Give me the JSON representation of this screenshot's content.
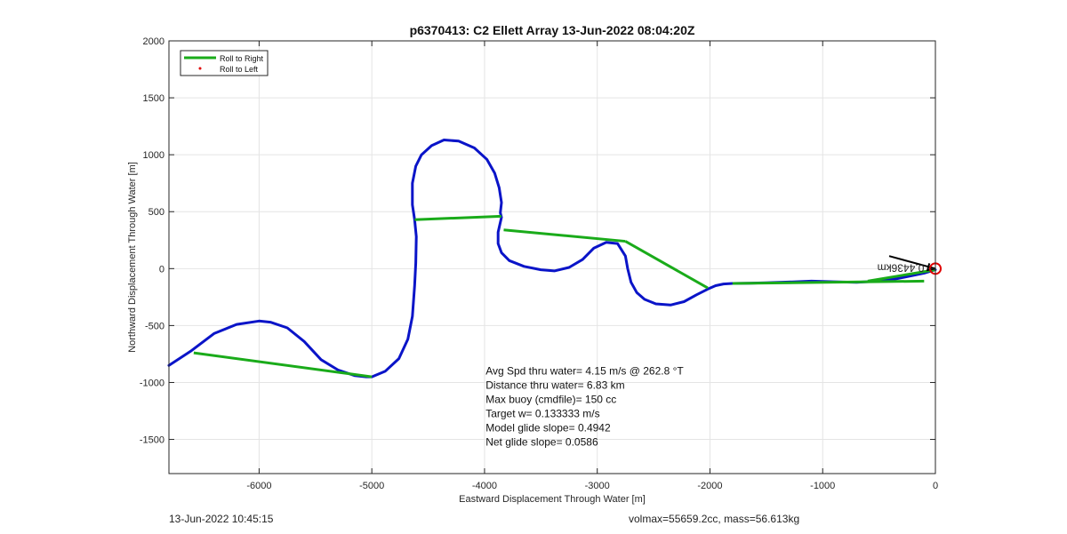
{
  "footer": {
    "timestamp": "13-Jun-2022 10:45:15",
    "volume_mass": "volmax=55659.2cc, mass=56.613kg"
  },
  "chart_data": {
    "type": "line",
    "title": "p6370413: C2 Ellett Array 13-Jun-2022 08:04:20Z",
    "xlabel": "Eastward Displacement Through Water [m]",
    "ylabel": "Northward Displacement Through Water [m]",
    "xlim": [
      -6800,
      0
    ],
    "ylim": [
      -1800,
      2000
    ],
    "xticks": [
      -6000,
      -5000,
      -4000,
      -3000,
      -2000,
      -1000,
      0
    ],
    "yticks": [
      -1500,
      -1000,
      -500,
      0,
      500,
      1000,
      1500,
      2000
    ],
    "grid": true,
    "legend": {
      "placement": "top-left",
      "entries": [
        {
          "label": "Roll to Right",
          "color": "#1aab1a",
          "style": "line"
        },
        {
          "label": "Roll to Left",
          "color": "#e00000",
          "style": "dot"
        }
      ]
    },
    "track_color": "#0a14c8",
    "series": [
      {
        "style": "track",
        "x": [
          -6800,
          -6600,
          -6400,
          -6200,
          -6000,
          -5900,
          -5750,
          -5600,
          -5450,
          -5300,
          -5150,
          -5050,
          -5000,
          -4880,
          -4760,
          -4680,
          -4640,
          -4620,
          -4610,
          -4605,
          -4620,
          -4640,
          -4640,
          -4610,
          -4560,
          -4470,
          -4360,
          -4230,
          -4090,
          -3980,
          -3910,
          -3870,
          -3850,
          -3860,
          -3850,
          -3880,
          -3880,
          -3850,
          -3780,
          -3650,
          -3500,
          -3380,
          -3250,
          -3130,
          -3030,
          -2920,
          -2820,
          -2750,
          -2730,
          -2700,
          -2650,
          -2580,
          -2480,
          -2350,
          -2230,
          -2120,
          -2020,
          -1950,
          -1880,
          -1800,
          -1650,
          -1500,
          -1300,
          -1100,
          -900,
          -700,
          -500,
          -350,
          -200,
          -100,
          0
        ],
        "y": [
          -850,
          -720,
          -570,
          -490,
          -460,
          -470,
          -520,
          -640,
          -800,
          -890,
          -940,
          -950,
          -950,
          -900,
          -790,
          -620,
          -420,
          -150,
          50,
          280,
          430,
          560,
          750,
          900,
          1000,
          1080,
          1130,
          1120,
          1060,
          960,
          840,
          710,
          580,
          490,
          450,
          320,
          220,
          140,
          70,
          20,
          -10,
          -20,
          10,
          80,
          180,
          230,
          220,
          110,
          0,
          -120,
          -210,
          -270,
          -310,
          -320,
          -290,
          -230,
          -180,
          -150,
          -135,
          -130,
          -128,
          -125,
          -118,
          -110,
          -115,
          -120,
          -110,
          -90,
          -60,
          -40,
          -10
        ]
      },
      {
        "name": "Roll to Right",
        "style": "segments",
        "segments": [
          [
            [
              -6580,
              -740
            ],
            [
              -5000,
              -950
            ]
          ],
          [
            [
              -4620,
              430
            ],
            [
              -3850,
              460
            ]
          ],
          [
            [
              -3830,
              340
            ],
            [
              -2750,
              240
            ]
          ],
          [
            [
              -2750,
              240
            ],
            [
              -2020,
              -170
            ]
          ],
          [
            [
              -1800,
              -130
            ],
            [
              -100,
              -110
            ]
          ],
          [
            [
              -600,
              -110
            ],
            [
              0,
              -10
            ]
          ]
        ]
      }
    ],
    "annotations": [
      {
        "text": "Avg Spd thru water=  4.15 m/s @ 262.8 °T",
        "x": -3990,
        "y": -930
      },
      {
        "text": "Distance thru water=  6.83 km",
        "x": -3990,
        "y": -1055
      },
      {
        "text": "Max buoy (cmdfile)= 150 cc",
        "x": -3990,
        "y": -1180
      },
      {
        "text": "Target w= 0.133333 m/s",
        "x": -3990,
        "y": -1305
      },
      {
        "text": "Model glide slope= 0.4942",
        "x": -3990,
        "y": -1430
      },
      {
        "text": "Net glide slope= 0.0586",
        "x": -3990,
        "y": -1555
      },
      {
        "text": "0.4436km",
        "x": -100,
        "y": 0,
        "rotated": 180
      }
    ],
    "marker": {
      "x": 0,
      "y": 0,
      "color": "#e00000"
    },
    "vector": {
      "from": [
        0,
        0
      ],
      "to": [
        -410,
        110
      ],
      "color": "#000000"
    }
  }
}
